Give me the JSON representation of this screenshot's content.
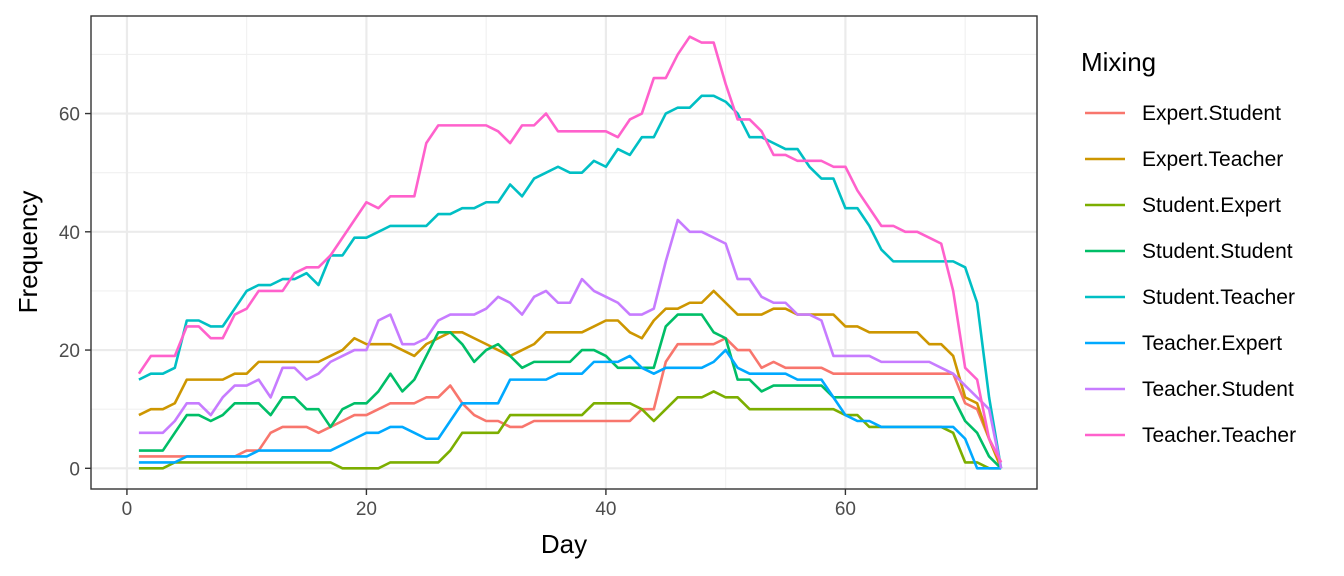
{
  "chart_data": {
    "type": "line",
    "xlabel": "Day",
    "ylabel": "Frequency",
    "xlim": [
      -3,
      76
    ],
    "ylim": [
      -3.5,
      76.5
    ],
    "x_ticks": [
      0,
      20,
      40,
      60
    ],
    "y_ticks": [
      0,
      20,
      40,
      60
    ],
    "x_minor": [
      10,
      30,
      50,
      70
    ],
    "y_minor": [
      10,
      30,
      50,
      70
    ],
    "grid": true,
    "legend_title": "Mixing",
    "legend_position": "right",
    "x": [
      1,
      2,
      3,
      4,
      5,
      6,
      7,
      8,
      9,
      10,
      11,
      12,
      13,
      14,
      15,
      16,
      17,
      18,
      19,
      20,
      21,
      22,
      23,
      24,
      25,
      26,
      27,
      28,
      29,
      30,
      31,
      32,
      33,
      34,
      35,
      36,
      37,
      38,
      39,
      40,
      41,
      42,
      43,
      44,
      45,
      46,
      47,
      48,
      49,
      50,
      51,
      52,
      53,
      54,
      55,
      56,
      57,
      58,
      59,
      60,
      61,
      62,
      63,
      64,
      65,
      66,
      67,
      68,
      69,
      70,
      71,
      72,
      73
    ],
    "series": [
      {
        "name": "Expert.Student",
        "color": "#F8766D",
        "values": [
          2,
          2,
          2,
          2,
          2,
          2,
          2,
          2,
          2,
          3,
          3,
          6,
          7,
          7,
          7,
          6,
          7,
          8,
          9,
          9,
          10,
          11,
          11,
          11,
          12,
          12,
          14,
          11,
          9,
          8,
          8,
          7,
          7,
          8,
          8,
          8,
          8,
          8,
          8,
          8,
          8,
          8,
          10,
          10,
          18,
          21,
          21,
          21,
          21,
          22,
          20,
          20,
          17,
          18,
          17,
          17,
          17,
          17,
          16,
          16,
          16,
          16,
          16,
          16,
          16,
          16,
          16,
          16,
          16,
          11,
          10,
          5,
          1
        ]
      },
      {
        "name": "Expert.Teacher",
        "color": "#CD9600",
        "values": [
          9,
          10,
          10,
          11,
          15,
          15,
          15,
          15,
          16,
          16,
          18,
          18,
          18,
          18,
          18,
          18,
          19,
          20,
          22,
          21,
          21,
          21,
          20,
          19,
          21,
          22,
          23,
          23,
          22,
          21,
          20,
          19,
          20,
          21,
          23,
          23,
          23,
          23,
          24,
          25,
          25,
          23,
          22,
          25,
          27,
          27,
          28,
          28,
          30,
          28,
          26,
          26,
          26,
          27,
          27,
          26,
          26,
          26,
          26,
          24,
          24,
          23,
          23,
          23,
          23,
          23,
          21,
          21,
          19,
          12,
          11,
          5,
          0
        ]
      },
      {
        "name": "Student.Expert",
        "color": "#7CAE00",
        "values": [
          0,
          0,
          0,
          1,
          1,
          1,
          1,
          1,
          1,
          1,
          1,
          1,
          1,
          1,
          1,
          1,
          1,
          0,
          0,
          0,
          0,
          1,
          1,
          1,
          1,
          1,
          3,
          6,
          6,
          6,
          6,
          9,
          9,
          9,
          9,
          9,
          9,
          9,
          11,
          11,
          11,
          11,
          10,
          8,
          10,
          12,
          12,
          12,
          13,
          12,
          12,
          10,
          10,
          10,
          10,
          10,
          10,
          10,
          10,
          9,
          9,
          7,
          7,
          7,
          7,
          7,
          7,
          7,
          6,
          1,
          1,
          0,
          0
        ]
      },
      {
        "name": "Student.Student",
        "color": "#00BE67",
        "values": [
          3,
          3,
          3,
          6,
          9,
          9,
          8,
          9,
          11,
          11,
          11,
          9,
          12,
          12,
          10,
          10,
          7,
          10,
          11,
          11,
          13,
          16,
          13,
          15,
          19,
          23,
          23,
          21,
          18,
          20,
          21,
          19,
          17,
          18,
          18,
          18,
          18,
          20,
          20,
          19,
          17,
          17,
          17,
          17,
          24,
          26,
          26,
          26,
          23,
          22,
          15,
          15,
          13,
          14,
          14,
          14,
          14,
          14,
          12,
          12,
          12,
          12,
          12,
          12,
          12,
          12,
          12,
          12,
          12,
          8,
          6,
          2,
          0
        ]
      },
      {
        "name": "Student.Teacher",
        "color": "#00BFC4",
        "values": [
          15,
          16,
          16,
          17,
          25,
          25,
          24,
          24,
          27,
          30,
          31,
          31,
          32,
          32,
          33,
          31,
          36,
          36,
          39,
          39,
          40,
          41,
          41,
          41,
          41,
          43,
          43,
          44,
          44,
          45,
          45,
          48,
          46,
          49,
          50,
          51,
          50,
          50,
          52,
          51,
          54,
          53,
          56,
          56,
          60,
          61,
          61,
          63,
          63,
          62,
          60,
          56,
          56,
          55,
          54,
          54,
          51,
          49,
          49,
          44,
          44,
          41,
          37,
          35,
          35,
          35,
          35,
          35,
          35,
          34,
          28,
          12,
          0
        ]
      },
      {
        "name": "Teacher.Expert",
        "color": "#00A9FF",
        "values": [
          1,
          1,
          1,
          1,
          2,
          2,
          2,
          2,
          2,
          2,
          3,
          3,
          3,
          3,
          3,
          3,
          3,
          4,
          5,
          6,
          6,
          7,
          7,
          6,
          5,
          5,
          8,
          11,
          11,
          11,
          11,
          15,
          15,
          15,
          15,
          16,
          16,
          16,
          18,
          18,
          18,
          19,
          17,
          16,
          17,
          17,
          17,
          17,
          18,
          20,
          17,
          16,
          16,
          16,
          16,
          15,
          15,
          15,
          12,
          9,
          8,
          8,
          7,
          7,
          7,
          7,
          7,
          7,
          7,
          5,
          0,
          0,
          0
        ]
      },
      {
        "name": "Teacher.Student",
        "color": "#C77CFF",
        "values": [
          6,
          6,
          6,
          8,
          11,
          11,
          9,
          12,
          14,
          14,
          15,
          12,
          17,
          17,
          15,
          16,
          18,
          19,
          20,
          20,
          25,
          26,
          21,
          21,
          22,
          25,
          26,
          26,
          26,
          27,
          29,
          28,
          26,
          29,
          30,
          28,
          28,
          32,
          30,
          29,
          28,
          26,
          26,
          27,
          35,
          42,
          40,
          40,
          39,
          38,
          32,
          32,
          29,
          28,
          28,
          26,
          26,
          25,
          19,
          19,
          19,
          19,
          18,
          18,
          18,
          18,
          18,
          17,
          16,
          14,
          12,
          10,
          0
        ]
      },
      {
        "name": "Teacher.Teacher",
        "color": "#FF61CC",
        "values": [
          16,
          19,
          19,
          19,
          24,
          24,
          22,
          22,
          26,
          27,
          30,
          30,
          30,
          33,
          34,
          34,
          36,
          39,
          42,
          45,
          44,
          46,
          46,
          46,
          55,
          58,
          58,
          58,
          58,
          58,
          57,
          55,
          58,
          58,
          60,
          57,
          57,
          57,
          57,
          57,
          56,
          59,
          60,
          66,
          66,
          70,
          73,
          72,
          72,
          65,
          59,
          59,
          57,
          53,
          53,
          52,
          52,
          52,
          51,
          51,
          47,
          44,
          41,
          41,
          40,
          40,
          39,
          38,
          30,
          17,
          15,
          5,
          1
        ]
      }
    ]
  }
}
